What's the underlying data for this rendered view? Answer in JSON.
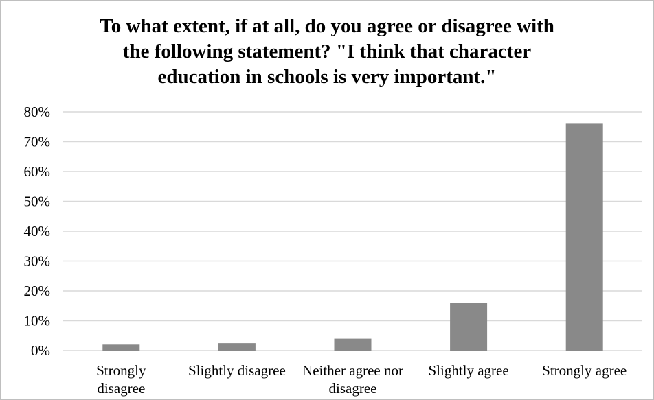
{
  "chart_data": {
    "type": "bar",
    "title_lines": [
      "To what extent, if at all, do you agree or disagree with",
      "the following statement? \"I think that character",
      "education in schools is very important.\""
    ],
    "categories": [
      [
        "Strongly",
        "disagree"
      ],
      [
        "Slightly disagree"
      ],
      [
        "Neither agree nor",
        "disagree"
      ],
      [
        "Slightly agree"
      ],
      [
        "Strongly agree"
      ]
    ],
    "values": [
      2,
      2.5,
      4,
      16,
      76
    ],
    "ylim": [
      0,
      80
    ],
    "yticks": [
      0,
      10,
      20,
      30,
      40,
      50,
      60,
      70,
      80
    ],
    "ytick_labels": [
      "0%",
      "10%",
      "20%",
      "30%",
      "40%",
      "50%",
      "60%",
      "70%",
      "80%"
    ],
    "xlabel": "",
    "ylabel": "",
    "grid": true,
    "legend": "none",
    "bar_color": "#898989",
    "grid_color": "#d9d9d9"
  }
}
